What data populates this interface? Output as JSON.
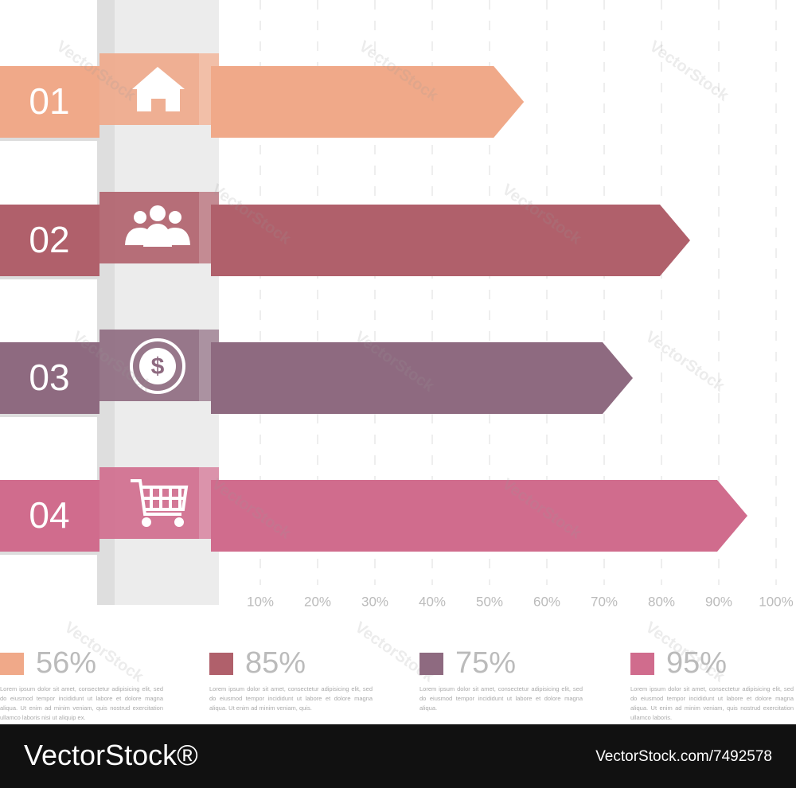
{
  "chart_data": {
    "type": "arrow-bar",
    "categories": [
      "01",
      "02",
      "03",
      "04"
    ],
    "values": [
      56,
      85,
      75,
      95
    ],
    "value_labels": [
      "56%",
      "85%",
      "75%",
      "95%"
    ],
    "colors": [
      "#f0a989",
      "#b0606b",
      "#8e6a80",
      "#d06c8d"
    ],
    "xlim": [
      0,
      100
    ],
    "xticks": [
      {
        "value": 10,
        "label": "10%"
      },
      {
        "value": 20,
        "label": "20%"
      },
      {
        "value": 30,
        "label": "30%"
      },
      {
        "value": 40,
        "label": "40%"
      },
      {
        "value": 50,
        "label": "50%"
      },
      {
        "value": 60,
        "label": "60%"
      },
      {
        "value": 70,
        "label": "70%"
      },
      {
        "value": 80,
        "label": "80%"
      },
      {
        "value": 90,
        "label": "90%"
      },
      {
        "value": 100,
        "label": "100%"
      }
    ],
    "grid": true,
    "descriptions": [
      "Lorem ipsum dolor sit amet, consectetur adipisicing elit, sed do eiusmod tempor incididunt ut labore et dolore magna aliqua. Ut enim ad minim veniam, quis nostrud exercitation ullamco laboris nisi ut aliquip ex.",
      "Lorem ipsum dolor sit amet, consectetur adipisicing elit, sed do eiusmod tempor incididunt ut labore et dolore magna aliqua. Ut enim ad minim veniam, quis.",
      "Lorem ipsum dolor sit amet, consectetur adipisicing elit, sed do eiusmod tempor incididunt ut labore et dolore magna aliqua.",
      "Lorem ipsum dolor sit amet, consectetur adipisicing elit, sed do eiusmod tempor incididunt ut labore et dolore magna aliqua. Ut enim ad minim veniam, quis nostrud exercitation ullamco laboris."
    ]
  },
  "watermark": "VectorStock",
  "footer": {
    "brand": "VectorStock®",
    "url": "VectorStock.com/7492578"
  }
}
